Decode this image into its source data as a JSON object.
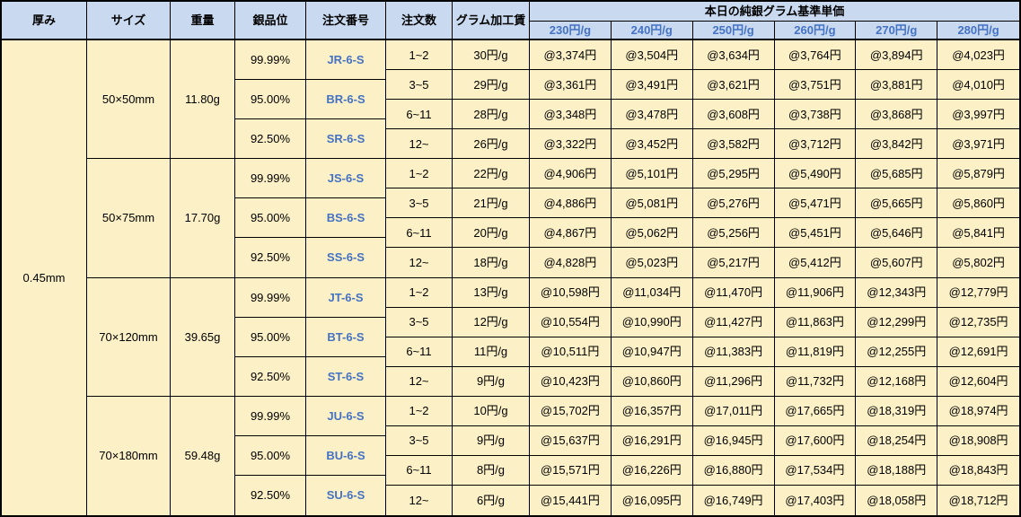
{
  "colors": {
    "header_bg": "#C9DAF0",
    "body_bg": "#FCF0C6",
    "blue_text": "#4472C4",
    "border": "#000000"
  },
  "table": {
    "columns": [
      "厚み",
      "サイズ",
      "重量",
      "銀品位",
      "注文番号",
      "注文数",
      "グラム加工賃"
    ],
    "price_group_header": "本日の純銀グラム基準単価",
    "price_columns": [
      "230円/g",
      "240円/g",
      "250円/g",
      "260円/g",
      "270円/g",
      "280円/g"
    ],
    "thickness": "0.45mm",
    "blocks": [
      {
        "size": "50×50mm",
        "weight": "11.80g",
        "purities": [
          {
            "purity": "99.99%",
            "order_no": "JR-6-S"
          },
          {
            "purity": "95.00%",
            "order_no": "BR-6-S"
          },
          {
            "purity": "92.50%",
            "order_no": "SR-6-S"
          }
        ],
        "rows": [
          {
            "qty": "1~2",
            "fee": "30円/g",
            "prices": [
              "@3,374円",
              "@3,504円",
              "@3,634円",
              "@3,764円",
              "@3,894円",
              "@4,023円"
            ]
          },
          {
            "qty": "3~5",
            "fee": "29円/g",
            "prices": [
              "@3,361円",
              "@3,491円",
              "@3,621円",
              "@3,751円",
              "@3,881円",
              "@4,010円"
            ]
          },
          {
            "qty": "6~11",
            "fee": "28円/g",
            "prices": [
              "@3,348円",
              "@3,478円",
              "@3,608円",
              "@3,738円",
              "@3,868円",
              "@3,997円"
            ]
          },
          {
            "qty": "12~",
            "fee": "26円/g",
            "prices": [
              "@3,322円",
              "@3,452円",
              "@3,582円",
              "@3,712円",
              "@3,842円",
              "@3,971円"
            ]
          }
        ]
      },
      {
        "size": "50×75mm",
        "weight": "17.70g",
        "purities": [
          {
            "purity": "99.99%",
            "order_no": "JS-6-S"
          },
          {
            "purity": "95.00%",
            "order_no": "BS-6-S"
          },
          {
            "purity": "92.50%",
            "order_no": "SS-6-S"
          }
        ],
        "rows": [
          {
            "qty": "1~2",
            "fee": "22円/g",
            "prices": [
              "@4,906円",
              "@5,101円",
              "@5,295円",
              "@5,490円",
              "@5,685円",
              "@5,879円"
            ]
          },
          {
            "qty": "3~5",
            "fee": "21円/g",
            "prices": [
              "@4,886円",
              "@5,081円",
              "@5,276円",
              "@5,471円",
              "@5,665円",
              "@5,860円"
            ]
          },
          {
            "qty": "6~11",
            "fee": "20円/g",
            "prices": [
              "@4,867円",
              "@5,062円",
              "@5,256円",
              "@5,451円",
              "@5,646円",
              "@5,841円"
            ]
          },
          {
            "qty": "12~",
            "fee": "18円/g",
            "prices": [
              "@4,828円",
              "@5,023円",
              "@5,217円",
              "@5,412円",
              "@5,607円",
              "@5,802円"
            ]
          }
        ]
      },
      {
        "size": "70×120mm",
        "weight": "39.65g",
        "purities": [
          {
            "purity": "99.99%",
            "order_no": "JT-6-S"
          },
          {
            "purity": "95.00%",
            "order_no": "BT-6-S"
          },
          {
            "purity": "92.50%",
            "order_no": "ST-6-S"
          }
        ],
        "rows": [
          {
            "qty": "1~2",
            "fee": "13円/g",
            "prices": [
              "@10,598円",
              "@11,034円",
              "@11,470円",
              "@11,906円",
              "@12,343円",
              "@12,779円"
            ]
          },
          {
            "qty": "3~5",
            "fee": "12円/g",
            "prices": [
              "@10,554円",
              "@10,990円",
              "@11,427円",
              "@11,863円",
              "@12,299円",
              "@12,735円"
            ]
          },
          {
            "qty": "6~11",
            "fee": "11円/g",
            "prices": [
              "@10,511円",
              "@10,947円",
              "@11,383円",
              "@11,819円",
              "@12,255円",
              "@12,691円"
            ]
          },
          {
            "qty": "12~",
            "fee": "9円/g",
            "prices": [
              "@10,423円",
              "@10,860円",
              "@11,296円",
              "@11,732円",
              "@12,168円",
              "@12,604円"
            ]
          }
        ]
      },
      {
        "size": "70×180mm",
        "weight": "59.48g",
        "purities": [
          {
            "purity": "99.99%",
            "order_no": "JU-6-S"
          },
          {
            "purity": "95.00%",
            "order_no": "BU-6-S"
          },
          {
            "purity": "92.50%",
            "order_no": "SU-6-S"
          }
        ],
        "rows": [
          {
            "qty": "1~2",
            "fee": "10円/g",
            "prices": [
              "@15,702円",
              "@16,357円",
              "@17,011円",
              "@17,665円",
              "@18,319円",
              "@18,974円"
            ]
          },
          {
            "qty": "3~5",
            "fee": "9円/g",
            "prices": [
              "@15,637円",
              "@16,291円",
              "@16,945円",
              "@17,600円",
              "@18,254円",
              "@18,908円"
            ]
          },
          {
            "qty": "6~11",
            "fee": "8円/g",
            "prices": [
              "@15,571円",
              "@16,226円",
              "@16,880円",
              "@17,534円",
              "@18,188円",
              "@18,843円"
            ]
          },
          {
            "qty": "12~",
            "fee": "6円/g",
            "prices": [
              "@15,441円",
              "@16,095円",
              "@16,749円",
              "@17,403円",
              "@18,058円",
              "@18,712円"
            ]
          }
        ]
      }
    ]
  }
}
